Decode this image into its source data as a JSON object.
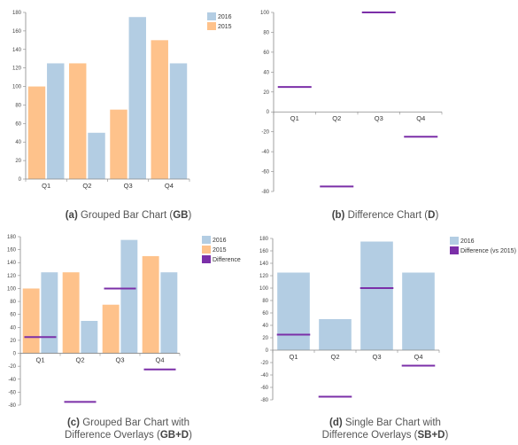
{
  "chart_data": [
    {
      "type": "bar",
      "caption_id": "(a)",
      "caption": "Grouped Bar Chart",
      "caption_abbr": "GB",
      "categories": [
        "Q1",
        "Q2",
        "Q3",
        "Q4"
      ],
      "series": [
        {
          "name": "2015",
          "values": [
            100,
            125,
            75,
            150
          ],
          "color": "#fec28b"
        },
        {
          "name": "2016",
          "values": [
            125,
            50,
            175,
            125
          ],
          "color": "#b3cde3"
        }
      ],
      "ylim": [
        0,
        180
      ],
      "yticks": [
        0,
        20,
        40,
        60,
        80,
        100,
        120,
        140,
        160,
        180
      ],
      "legend": [
        "2016",
        "2015"
      ],
      "legend_placement": "top-right",
      "grid": false
    },
    {
      "type": "bar",
      "caption_id": "(b)",
      "caption": "Difference Chart",
      "caption_abbr": "D",
      "categories": [
        "Q1",
        "Q2",
        "Q3",
        "Q4"
      ],
      "series": [
        {
          "name": "Difference",
          "values": [
            25,
            -75,
            100,
            -25
          ],
          "color": "#7b2fa8"
        }
      ],
      "ylim": [
        -80,
        100
      ],
      "yticks": [
        -80,
        -60,
        -40,
        -20,
        0,
        20,
        40,
        60,
        80,
        100
      ],
      "grid": false
    },
    {
      "type": "bar",
      "caption_id": "(c)",
      "caption": "Grouped Bar Chart with",
      "caption_line2": "Difference Overlays",
      "caption_abbr": "GB+D",
      "categories": [
        "Q1",
        "Q2",
        "Q3",
        "Q4"
      ],
      "series": [
        {
          "name": "2015",
          "values": [
            100,
            125,
            75,
            150
          ],
          "color": "#fec28b"
        },
        {
          "name": "2016",
          "values": [
            125,
            50,
            175,
            125
          ],
          "color": "#b3cde3"
        },
        {
          "name": "Difference",
          "values": [
            25,
            -75,
            100,
            -25
          ],
          "color": "#7b2fa8"
        }
      ],
      "ylim": [
        -80,
        180
      ],
      "yticks": [
        -80,
        -60,
        -40,
        -20,
        0,
        20,
        40,
        60,
        80,
        100,
        120,
        140,
        160,
        180
      ],
      "legend": [
        "2016",
        "2015",
        "Difference"
      ],
      "legend_placement": "top-right",
      "grid": false
    },
    {
      "type": "bar",
      "caption_id": "(d)",
      "caption": "Single Bar Chart with",
      "caption_line2": "Difference Overlays",
      "caption_abbr": "SB+D",
      "categories": [
        "Q1",
        "Q2",
        "Q3",
        "Q4"
      ],
      "series": [
        {
          "name": "2016",
          "values": [
            125,
            50,
            175,
            125
          ],
          "color": "#b3cde3"
        },
        {
          "name": "Difference (vs 2015)",
          "values": [
            25,
            -75,
            100,
            -25
          ],
          "color": "#7b2fa8"
        }
      ],
      "ylim": [
        -80,
        180
      ],
      "yticks": [
        -80,
        -60,
        -40,
        -20,
        0,
        20,
        40,
        60,
        80,
        100,
        120,
        140,
        160,
        180
      ],
      "legend": [
        "2016",
        "Difference (vs 2015)"
      ],
      "legend_placement": "top-left",
      "grid": false
    }
  ]
}
